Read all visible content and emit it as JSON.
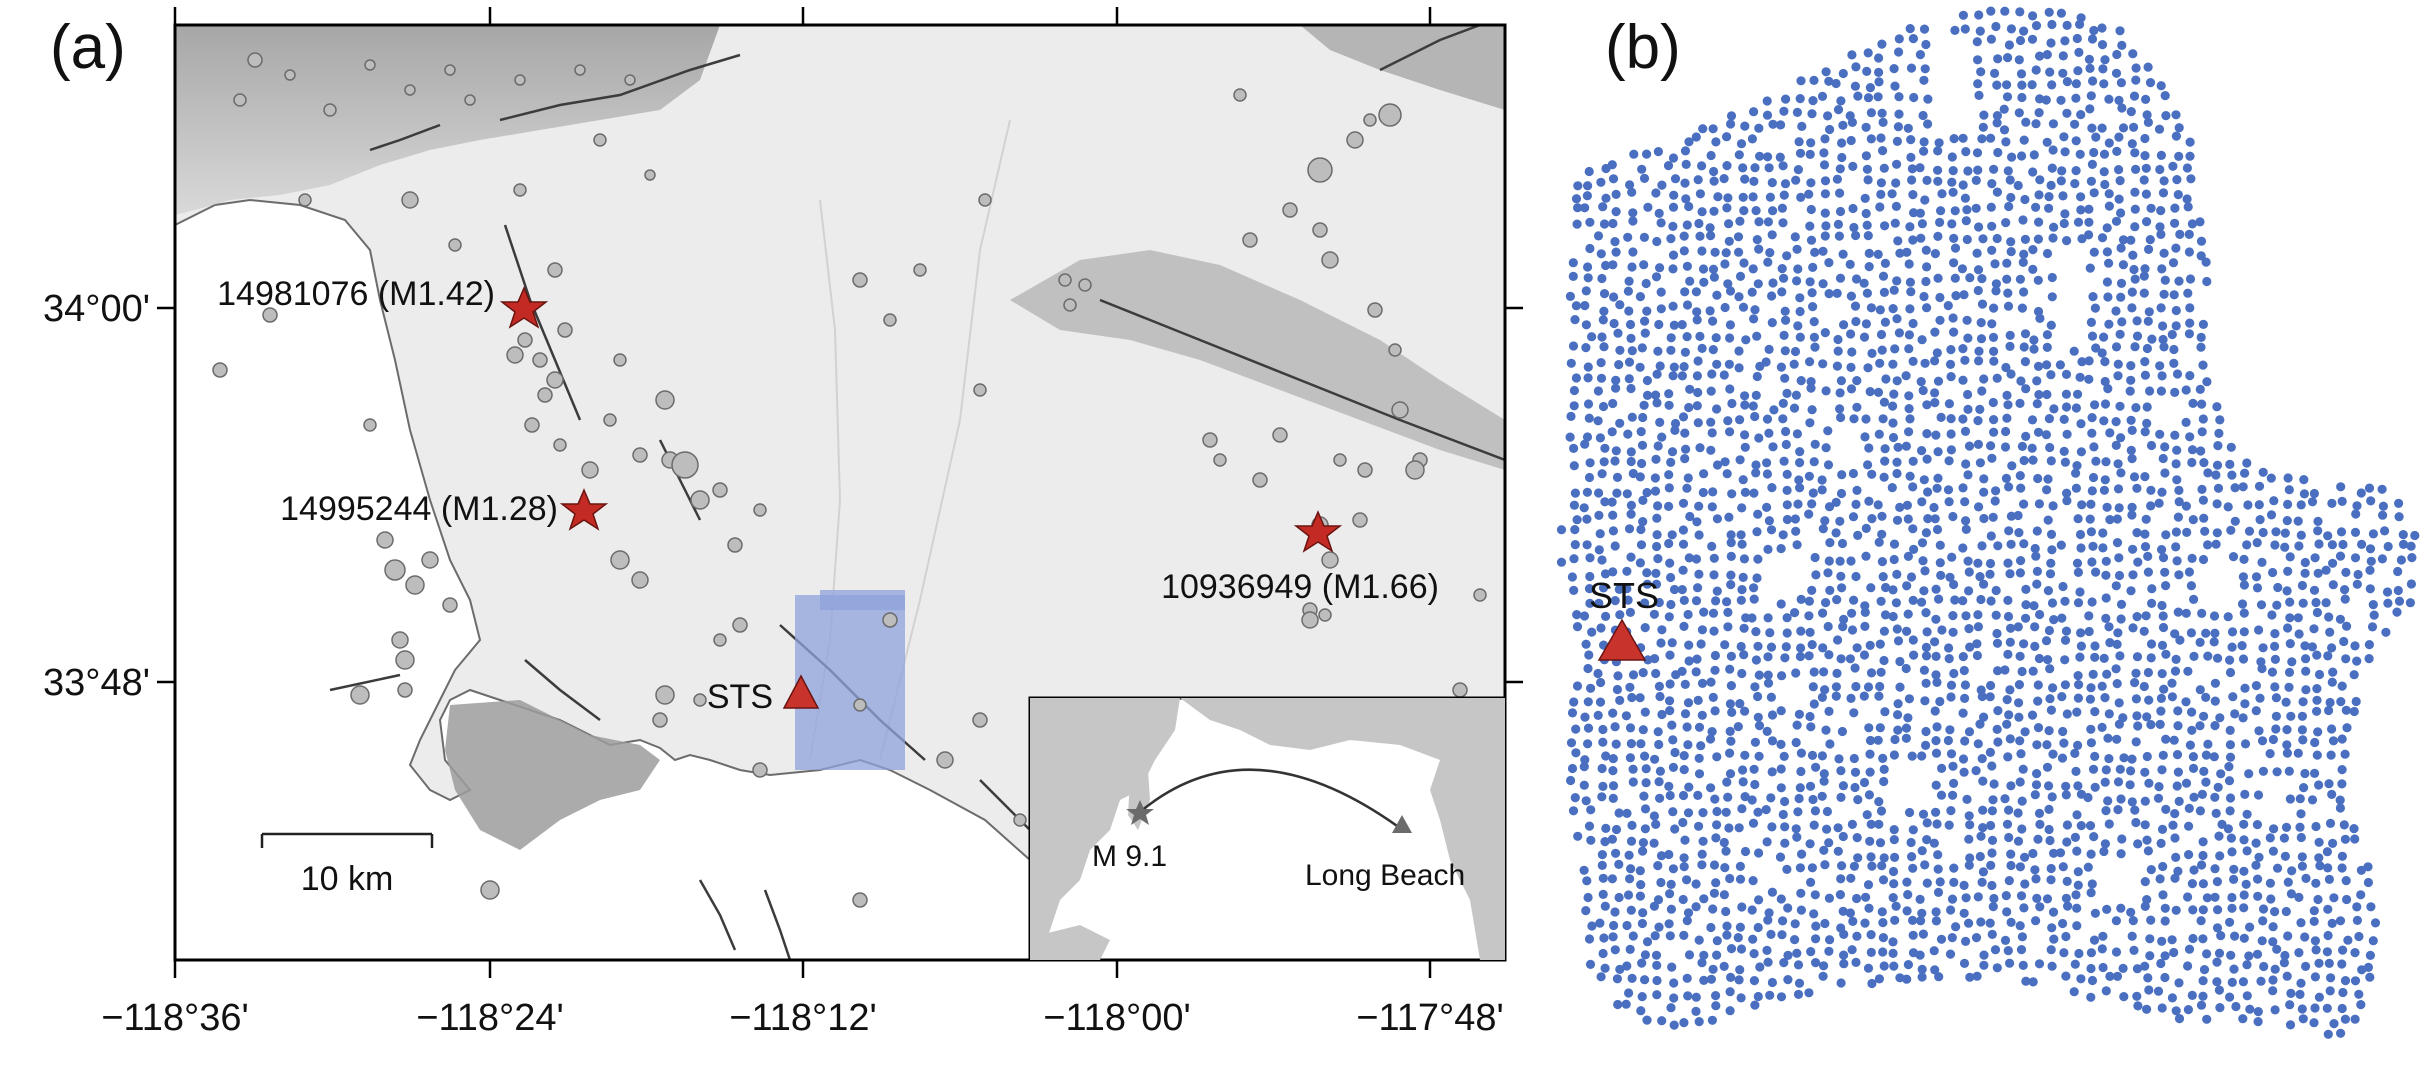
{
  "panel_a": {
    "label": "(a)",
    "x_ticks": [
      "−118°36'",
      "−118°24'",
      "−118°12'",
      "−118°00'",
      "−117°48'"
    ],
    "y_ticks": [
      "34°00'",
      "33°48'"
    ],
    "events": [
      {
        "label": "14981076 (M1.42)"
      },
      {
        "label": "14995244 (M1.28)"
      },
      {
        "label": "10936949 (M1.66)"
      }
    ],
    "station": "STS",
    "scale_bar": "10 km",
    "inset": {
      "source_label": "M 9.1",
      "target_label": "Long Beach"
    }
  },
  "panel_b": {
    "label": "(b)",
    "station": "STS"
  },
  "colors": {
    "event_star": "#c22a23",
    "station_triangle": "#c8342c",
    "array_dots": "#4a6fc0",
    "seismicity": "#b9b9b9",
    "faults": "#3c3c3c",
    "land": "#e9e9e9",
    "ocean": "#ffffff",
    "inset_land": "#c8c8c8"
  }
}
